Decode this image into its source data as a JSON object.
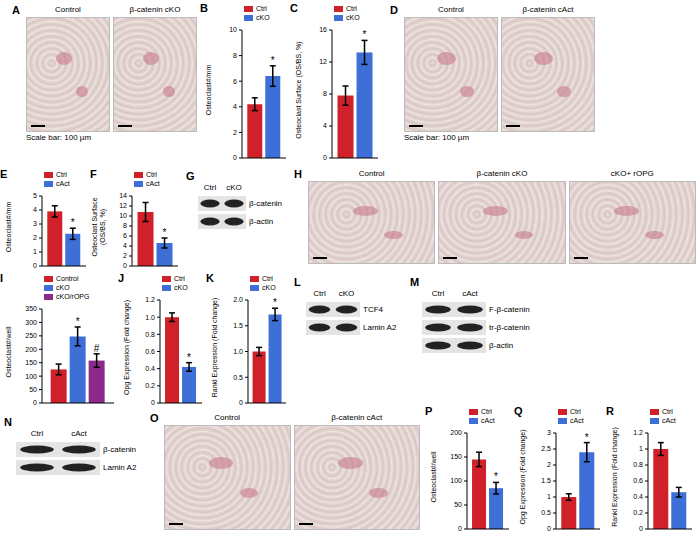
{
  "chart_data": [
    {
      "panel": "B",
      "type": "bar",
      "y_label": "Osteoclast#/mm",
      "categories": [
        null
      ],
      "tick_labels": "y",
      "grid": false,
      "legend": "top left",
      "ylim": [
        0,
        10
      ],
      "yticks": [
        0,
        2,
        4,
        6,
        8,
        10
      ],
      "series": [
        {
          "name": "Ctrl",
          "color": "#d0202a",
          "values": [
            4.2
          ],
          "errors": [
            0.5
          ]
        },
        {
          "name": "cKO",
          "color": "#3d6fd6",
          "values": [
            6.4
          ],
          "errors": [
            0.8
          ],
          "annotation": "*"
        }
      ]
    },
    {
      "panel": "C",
      "type": "bar",
      "y_label": "Osteoclast Surface (OS/BS, %)",
      "categories": [
        null
      ],
      "tick_labels": "y",
      "grid": false,
      "legend": "top left",
      "ylim": [
        0,
        16
      ],
      "yticks": [
        0,
        4,
        8,
        12,
        16
      ],
      "series": [
        {
          "name": "Ctrl",
          "color": "#d0202a",
          "values": [
            7.8
          ],
          "errors": [
            1.2
          ]
        },
        {
          "name": "cKO",
          "color": "#3d6fd6",
          "values": [
            13.2
          ],
          "errors": [
            1.5
          ],
          "annotation": "*"
        }
      ]
    },
    {
      "panel": "E",
      "type": "bar",
      "y_label": "Osteoclast#/mm",
      "categories": [
        null
      ],
      "tick_labels": "y",
      "grid": false,
      "legend": "top left",
      "ylim": [
        0,
        5
      ],
      "yticks": [
        0,
        1,
        2,
        3,
        4,
        5
      ],
      "series": [
        {
          "name": "Ctrl",
          "color": "#d0202a",
          "values": [
            3.9
          ],
          "errors": [
            0.4
          ]
        },
        {
          "name": "cAct",
          "color": "#3d6fd6",
          "values": [
            2.3
          ],
          "errors": [
            0.4
          ],
          "annotation": "*"
        }
      ]
    },
    {
      "panel": "F",
      "type": "bar",
      "y_label": "Osteoclast Surface (OS/BS, %)",
      "categories": [
        null
      ],
      "tick_labels": "y",
      "grid": false,
      "legend": "top left",
      "ylim": [
        0,
        14
      ],
      "yticks": [
        0,
        2,
        4,
        6,
        8,
        10,
        12,
        14
      ],
      "series": [
        {
          "name": "Ctrl",
          "color": "#d0202a",
          "values": [
            10.8
          ],
          "errors": [
            1.9
          ]
        },
        {
          "name": "cAct",
          "color": "#3d6fd6",
          "values": [
            4.6
          ],
          "errors": [
            1.0
          ],
          "annotation": "*"
        }
      ]
    },
    {
      "panel": "I",
      "type": "bar",
      "y_label": "Osteoclast#/well",
      "categories": [
        null
      ],
      "tick_labels": "y",
      "grid": false,
      "legend": "top left",
      "ylim": [
        0,
        350
      ],
      "yticks": [
        0,
        50,
        100,
        150,
        200,
        250,
        300,
        350
      ],
      "series": [
        {
          "name": "Control",
          "color": "#d0202a",
          "values": [
            125
          ],
          "errors": [
            20
          ]
        },
        {
          "name": "cKO",
          "color": "#3d6fd6",
          "values": [
            248
          ],
          "errors": [
            35
          ],
          "annotation": "*"
        },
        {
          "name": "cKO/rOPG",
          "color": "#8b2a8b",
          "values": [
            158
          ],
          "errors": [
            25
          ],
          "annotation": "#"
        }
      ]
    },
    {
      "panel": "J",
      "type": "bar",
      "y_label": "Opg Expression (Fold change)",
      "categories": [
        null
      ],
      "tick_labels": "y",
      "grid": false,
      "legend": "top left",
      "ylim": [
        0,
        1.2
      ],
      "yticks": [
        0,
        0.2,
        0.4,
        0.6,
        0.8,
        {
          "value": 1,
          "label": "1.0"
        },
        1.2
      ],
      "series": [
        {
          "name": "Ctrl",
          "color": "#d0202a",
          "values": [
            1.0
          ],
          "errors": [
            0.05
          ]
        },
        {
          "name": "cKO",
          "color": "#3d6fd6",
          "values": [
            0.42
          ],
          "errors": [
            0.05
          ],
          "annotation": "*"
        }
      ]
    },
    {
      "panel": "K",
      "type": "bar",
      "y_label": "Rankl Expression (Fold change)",
      "categories": [
        null
      ],
      "tick_labels": "y",
      "grid": false,
      "legend": "top left",
      "ylim": [
        0,
        2
      ],
      "yticks": [
        0,
        0.5,
        {
          "value": 1,
          "label": "1.0"
        },
        1.5,
        {
          "value": 2,
          "label": "2.0"
        }
      ],
      "series": [
        {
          "name": "Ctrl",
          "color": "#d0202a",
          "values": [
            1.0
          ],
          "errors": [
            0.08
          ]
        },
        {
          "name": "cKO",
          "color": "#3d6fd6",
          "values": [
            1.72
          ],
          "errors": [
            0.12
          ],
          "annotation": "*"
        }
      ]
    },
    {
      "panel": "P",
      "type": "bar",
      "y_label": "Osteoclast#/well",
      "categories": [
        null
      ],
      "tick_labels": "y",
      "grid": false,
      "legend": "top left",
      "ylim": [
        0,
        200
      ],
      "yticks": [
        0,
        50,
        100,
        150,
        200
      ],
      "series": [
        {
          "name": "Ctrl",
          "color": "#d0202a",
          "values": [
            145
          ],
          "errors": [
            15
          ]
        },
        {
          "name": "cAct",
          "color": "#3d6fd6",
          "values": [
            85
          ],
          "errors": [
            12
          ],
          "annotation": "*"
        }
      ]
    },
    {
      "panel": "Q",
      "type": "bar",
      "y_label": "Opg Expression (Fold change)",
      "categories": [
        null
      ],
      "tick_labels": "y",
      "grid": false,
      "legend": "top left",
      "ylim": [
        0,
        3
      ],
      "yticks": [
        0,
        0.5,
        1,
        1.5,
        2,
        2.5,
        3
      ],
      "series": [
        {
          "name": "Ctrl",
          "color": "#d0202a",
          "values": [
            1.0
          ],
          "errors": [
            0.1
          ]
        },
        {
          "name": "cAct",
          "color": "#3d6fd6",
          "values": [
            2.4
          ],
          "errors": [
            0.3
          ],
          "annotation": "*"
        }
      ]
    },
    {
      "panel": "R",
      "type": "bar",
      "y_label": "Rankl Expression (Fold change)",
      "categories": [
        null
      ],
      "tick_labels": "y",
      "grid": false,
      "legend": "top left",
      "ylim": [
        0,
        1.2
      ],
      "yticks": [
        0,
        0.2,
        0.4,
        0.6,
        0.8,
        1,
        1.2
      ],
      "series": [
        {
          "name": "Ctrl",
          "color": "#d0202a",
          "values": [
            1.0
          ],
          "errors": [
            0.08
          ]
        },
        {
          "name": "cAct",
          "color": "#3d6fd6",
          "values": [
            0.46
          ],
          "errors": [
            0.06
          ]
        }
      ]
    }
  ],
  "micrographs": [
    {
      "panel": "A",
      "labels": [
        "Control",
        "β-catenin cKO"
      ],
      "scale_bar": "Scale bar: 100 µm"
    },
    {
      "panel": "D",
      "labels": [
        "Control",
        "β-catenin cAct"
      ],
      "scale_bar": "Scale bar: 100 µm"
    },
    {
      "panel": "H",
      "labels": [
        "Control",
        "β-catenin cKO",
        "cKO+ rOPG"
      ]
    },
    {
      "panel": "O",
      "labels": [
        "Control",
        "β-catenin cAct"
      ]
    }
  ],
  "blots": [
    {
      "panel": "G",
      "lanes": [
        "Ctrl",
        "cKO"
      ],
      "rows": [
        "β-catenin",
        "β-actin"
      ]
    },
    {
      "panel": "L",
      "lanes": [
        "Ctrl",
        "cKO"
      ],
      "rows": [
        "TCF4",
        "Lamin A2"
      ]
    },
    {
      "panel": "M",
      "lanes": [
        "Ctrl",
        "cAct"
      ],
      "rows": [
        "F-β-catenin",
        "tr-β-catenin",
        "β-actin"
      ]
    },
    {
      "panel": "N",
      "lanes": [
        "Ctrl",
        "cAct"
      ],
      "rows": [
        "β-catenin",
        "Lamin A2"
      ]
    }
  ]
}
